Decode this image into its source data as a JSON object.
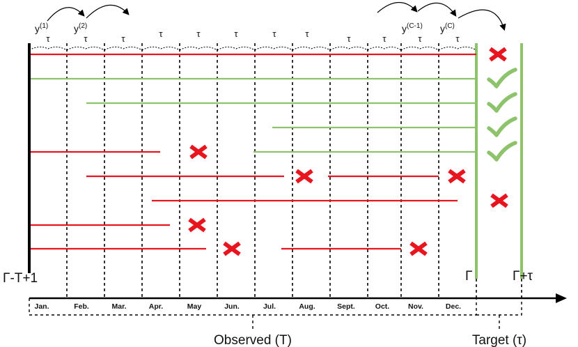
{
  "months": [
    "Jan.",
    "Feb.",
    "Mar.",
    "Apr.",
    "May",
    "Jun.",
    "Jul.",
    "Aug.",
    "Sept.",
    "Oct.",
    "Nov.",
    "Dec."
  ],
  "tau_symbol": "τ",
  "y_labels": [
    {
      "base": "y",
      "sup": "(1)"
    },
    {
      "base": "y",
      "sup": "(2)"
    },
    {
      "base": "y",
      "sup": "(C-1)"
    },
    {
      "base": "y",
      "sup": "(C)"
    }
  ],
  "start_label": "Γ-T+1",
  "gamma_label": "Γ",
  "gamma_tau_label": "Γ+τ",
  "observed_label": "Observed (T)",
  "target_label": "Target (τ)",
  "colors": {
    "negative": "#e8141e",
    "positive": "#8cc36b",
    "axis": "#000000",
    "cross": "#e8141e",
    "check": "#8cc36b"
  },
  "sequences": [
    {
      "color": "negative",
      "segments": [
        [
          "Jan.",
          "Dec."
        ]
      ],
      "outcome": "cross"
    },
    {
      "color": "positive",
      "segments": [
        [
          "Jan.",
          "Dec."
        ]
      ],
      "outcome": "check"
    },
    {
      "color": "positive",
      "segments": [
        [
          "Feb.",
          "Dec."
        ]
      ],
      "outcome": "check"
    },
    {
      "color": "positive",
      "segments": [
        [
          "Jul.",
          "Dec."
        ]
      ],
      "outcome": "check"
    },
    {
      "color": "positive",
      "segments": [
        [
          "Jun.",
          "Dec."
        ]
      ],
      "outcome": "check"
    },
    {
      "color": "negative",
      "segments": [
        [
          "Jan.",
          "Apr."
        ],
        [
          "Feb.",
          "Aug."
        ],
        [
          "Aug.",
          "Dec."
        ]
      ],
      "outcome": "dropout"
    },
    {
      "color": "negative",
      "segments": [
        [
          "Apr.",
          "Dec."
        ]
      ],
      "outcome": "cross"
    },
    {
      "color": "negative",
      "segments": [
        [
          "Jan.",
          "Apr."
        ]
      ],
      "outcome": "dropout"
    },
    {
      "color": "negative",
      "segments": [
        [
          "Jan.",
          "May"
        ],
        [
          "Aug.",
          "Nov."
        ]
      ],
      "outcome": "dropout"
    }
  ]
}
